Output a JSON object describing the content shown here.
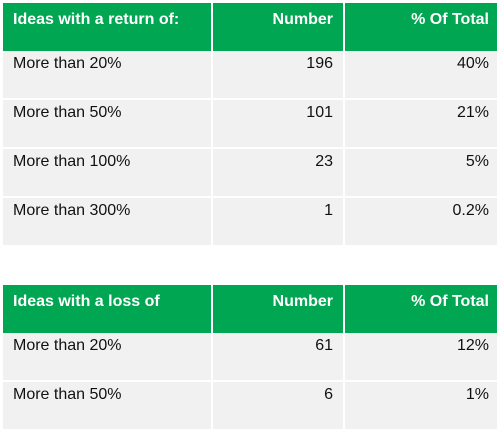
{
  "tables": [
    {
      "header": [
        "Ideas with a return of:",
        "Number",
        "% Of Total"
      ],
      "rows": [
        [
          "More than 20%",
          "196",
          "40%"
        ],
        [
          "More than 50%",
          "101",
          "21%"
        ],
        [
          "More than 100%",
          "23",
          "5%"
        ],
        [
          "More than 300%",
          "1",
          "0.2%"
        ]
      ]
    },
    {
      "header": [
        "Ideas with a loss of",
        "Number",
        "% Of Total"
      ],
      "rows": [
        [
          "More than 20%",
          "61",
          "12%"
        ],
        [
          "More than 50%",
          "6",
          "1%"
        ]
      ]
    }
  ],
  "colors": {
    "header_bg": "#00a651",
    "header_text": "#ffffff",
    "row_bg": "#f1f1f1"
  }
}
